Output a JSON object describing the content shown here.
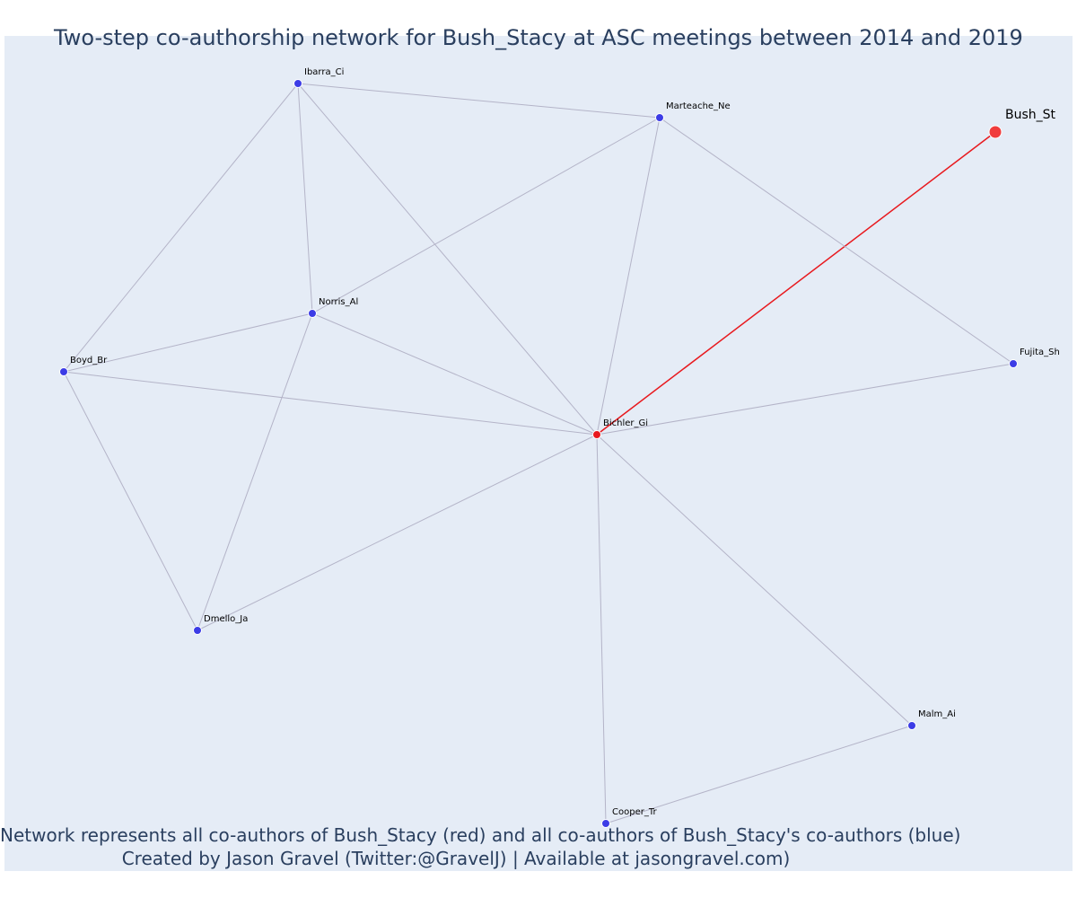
{
  "title": "Two-step co-authorship network for Bush_Stacy at ASC meetings between 2014 and 2019",
  "footer": {
    "line1": "Network represents all co-authors of Bush_Stacy (red) and all co-authors of Bush_Stacy's co-authors (blue)",
    "line2": "Created by Jason Gravel (Twitter:@GravelJ) | Available at jasongravel.com)"
  },
  "colors": {
    "background": "#e5ecf6",
    "edge": "#b4b4c8",
    "ego_edge": "#e8191e",
    "first_step": "#e8191e",
    "second_step": "#3c3ce6",
    "ego": "#f03c3c"
  },
  "nodes": [
    {
      "id": "Bush_St",
      "label": "Bush_St",
      "role": "ego"
    },
    {
      "id": "Bichler_Gi",
      "label": "Bichler_Gi",
      "role": "first_step"
    },
    {
      "id": "Ibarra_Ci",
      "label": "Ibarra_Ci",
      "role": "second_step"
    },
    {
      "id": "Marteache_Ne",
      "label": "Marteache_Ne",
      "role": "second_step"
    },
    {
      "id": "Norris_Al",
      "label": "Norris_Al",
      "role": "second_step"
    },
    {
      "id": "Boyd_Br",
      "label": "Boyd_Br",
      "role": "second_step"
    },
    {
      "id": "Fujita_Sh",
      "label": "Fujita_Sh",
      "role": "second_step"
    },
    {
      "id": "Dmello_Ja",
      "label": "Dmello_Ja",
      "role": "second_step"
    },
    {
      "id": "Malm_Ai",
      "label": "Malm_Ai",
      "role": "second_step"
    },
    {
      "id": "Cooper_Tr",
      "label": "Cooper_Tr",
      "role": "second_step"
    }
  ],
  "edges": [
    [
      "Bush_St",
      "Bichler_Gi"
    ],
    [
      "Ibarra_Ci",
      "Marteache_Ne"
    ],
    [
      "Ibarra_Ci",
      "Norris_Al"
    ],
    [
      "Ibarra_Ci",
      "Boyd_Br"
    ],
    [
      "Ibarra_Ci",
      "Bichler_Gi"
    ],
    [
      "Marteache_Ne",
      "Norris_Al"
    ],
    [
      "Marteache_Ne",
      "Bichler_Gi"
    ],
    [
      "Marteache_Ne",
      "Fujita_Sh"
    ],
    [
      "Norris_Al",
      "Boyd_Br"
    ],
    [
      "Norris_Al",
      "Bichler_Gi"
    ],
    [
      "Norris_Al",
      "Dmello_Ja"
    ],
    [
      "Boyd_Br",
      "Bichler_Gi"
    ],
    [
      "Boyd_Br",
      "Dmello_Ja"
    ],
    [
      "Dmello_Ja",
      "Bichler_Gi"
    ],
    [
      "Fujita_Sh",
      "Bichler_Gi"
    ],
    [
      "Malm_Ai",
      "Bichler_Gi"
    ],
    [
      "Malm_Ai",
      "Cooper_Tr"
    ],
    [
      "Cooper_Tr",
      "Bichler_Gi"
    ]
  ]
}
